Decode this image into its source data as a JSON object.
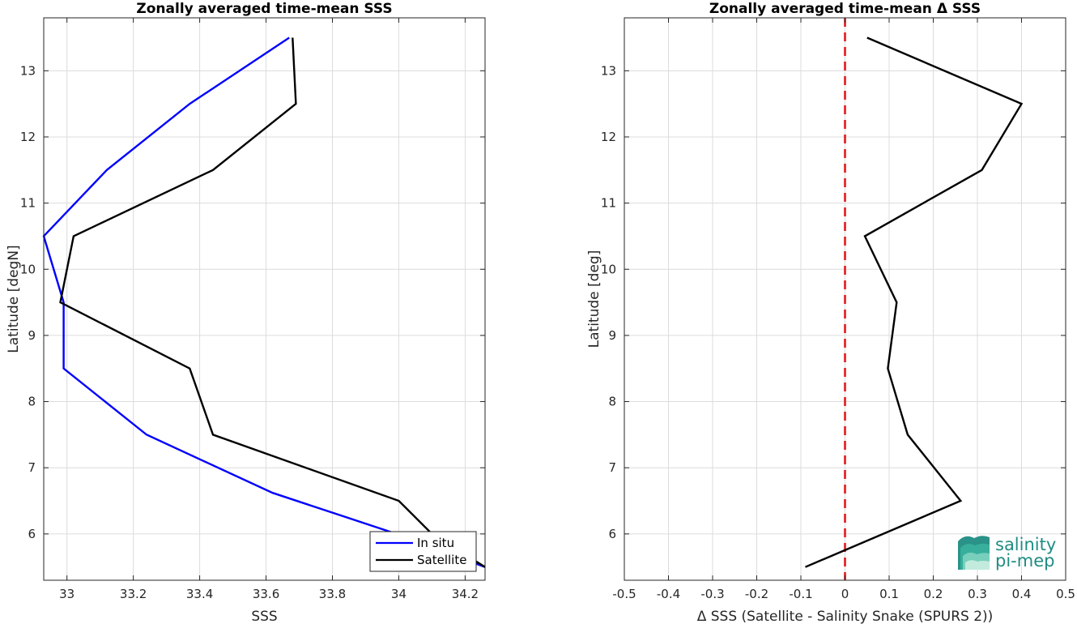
{
  "chart_data": [
    {
      "type": "line",
      "title": "Zonally averaged time-mean SSS",
      "xlabel": "SSS",
      "ylabel": "Latitude [degN]",
      "xlim": [
        32.93,
        34.26
      ],
      "ylim": [
        5.3,
        13.8
      ],
      "xticks": [
        33,
        33.2,
        33.4,
        33.6,
        33.8,
        34,
        34.2
      ],
      "xtick_labels": [
        "33",
        "33.2",
        "33.4",
        "33.6",
        "33.8",
        "34",
        "34.2"
      ],
      "yticks": [
        6,
        7,
        8,
        9,
        10,
        11,
        12,
        13
      ],
      "ytick_labels": [
        "6",
        "7",
        "8",
        "9",
        "10",
        "11",
        "12",
        "13"
      ],
      "grid": true,
      "legend": "bottom-right",
      "series": [
        {
          "name": "In situ",
          "color": "#0000ff",
          "points": [
            [
              33.67,
              13.5
            ],
            [
              33.37,
              12.5
            ],
            [
              33.12,
              11.5
            ],
            [
              32.93,
              10.5
            ],
            [
              32.99,
              9.5
            ],
            [
              32.99,
              8.5
            ],
            [
              33.24,
              7.5
            ],
            [
              33.62,
              6.62
            ],
            [
              34.0,
              5.99
            ],
            [
              34.26,
              5.5
            ]
          ]
        },
        {
          "name": "Satellite",
          "color": "#000000",
          "points": [
            [
              33.68,
              13.5
            ],
            [
              33.69,
              12.5
            ],
            [
              33.44,
              11.5
            ],
            [
              33.02,
              10.5
            ],
            [
              32.98,
              9.5
            ],
            [
              33.37,
              8.5
            ],
            [
              33.44,
              7.5
            ],
            [
              34.0,
              6.5
            ],
            [
              34.1,
              6.0
            ],
            [
              34.26,
              5.5
            ]
          ]
        }
      ]
    },
    {
      "type": "line",
      "title": "Zonally averaged time-mean Δ SSS",
      "xlabel": "Δ SSS (Satellite - Salinity Snake (SPURS 2))",
      "ylabel": "Latitude [deg]",
      "xlim": [
        -0.5,
        0.5
      ],
      "ylim": [
        5.3,
        13.8
      ],
      "xticks": [
        -0.5,
        -0.4,
        -0.3,
        -0.2,
        -0.1,
        0,
        0.1,
        0.2,
        0.3,
        0.4,
        0.5
      ],
      "xtick_labels": [
        "-0.5",
        "-0.4",
        "-0.3",
        "-0.2",
        "-0.1",
        "0",
        "0.1",
        "0.2",
        "0.3",
        "0.4",
        "0.5"
      ],
      "yticks": [
        6,
        7,
        8,
        9,
        10,
        11,
        12,
        13
      ],
      "ytick_labels": [
        "6",
        "7",
        "8",
        "9",
        "10",
        "11",
        "12",
        "13"
      ],
      "grid": true,
      "reference_line": {
        "x": 0,
        "color": "#e31a1c",
        "style": "dashed"
      },
      "series": [
        {
          "color": "#000000",
          "points": [
            [
              0.05,
              13.5
            ],
            [
              0.4,
              12.5
            ],
            [
              0.31,
              11.5
            ],
            [
              0.045,
              10.5
            ],
            [
              0.117,
              9.5
            ],
            [
              0.097,
              8.5
            ],
            [
              0.142,
              7.5
            ],
            [
              0.262,
              6.5
            ],
            [
              -0.09,
              5.5
            ]
          ]
        }
      ]
    }
  ],
  "logo": {
    "line1": "salinity",
    "line2": "pi-mep",
    "color": "#1f8c82",
    "icon": "salinity-pimep-logo-icon"
  }
}
